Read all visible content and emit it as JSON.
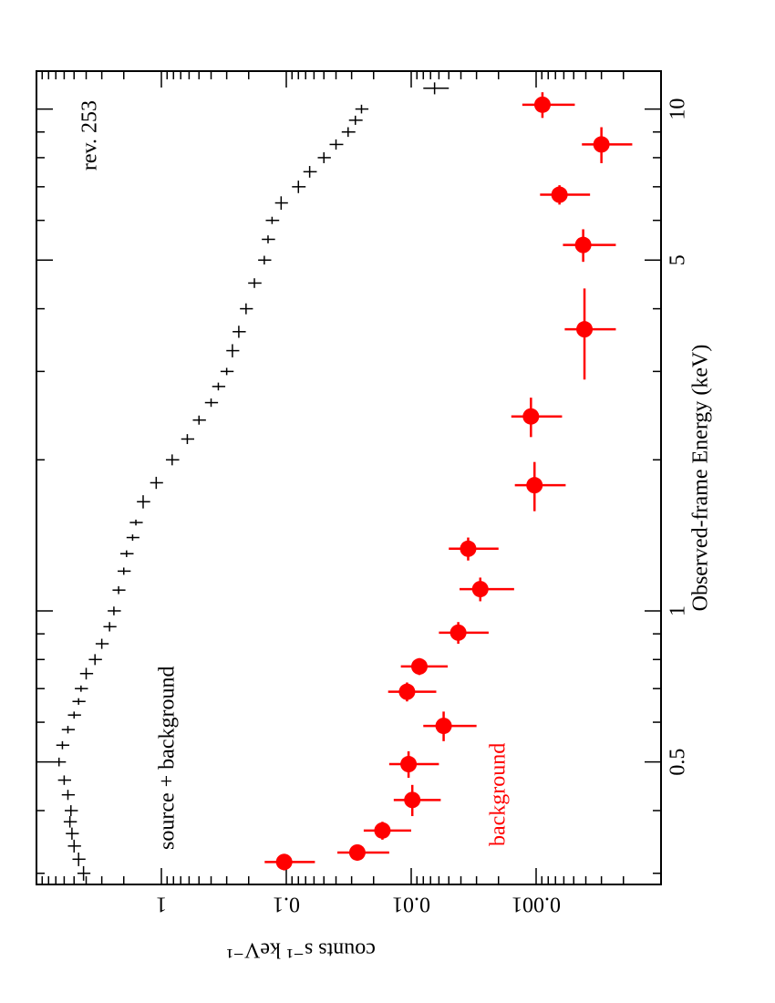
{
  "chart_data": {
    "type": "scatter",
    "xlabel": "Observed-frame  Energy  (keV)",
    "ylabel": "counts  s⁻¹  keV⁻¹",
    "annotations": [
      "rev. 253",
      "source + background",
      "background"
    ],
    "xscale": "log",
    "yscale": "log",
    "xlim": [
      0.285,
      11.9
    ],
    "ylim": [
      0.0001,
      10
    ],
    "xticks": [
      0.5,
      1,
      5,
      10
    ],
    "yticks": [
      0.001,
      0.01,
      0.1,
      1
    ],
    "xminorticks": [
      0.3,
      0.4,
      0.6,
      0.7,
      0.8,
      0.9,
      2,
      3,
      4,
      6,
      7,
      8,
      9
    ],
    "yminorticks": [
      0.0002,
      0.0003,
      0.0004,
      0.0005,
      0.0006,
      0.0007,
      0.0008,
      0.0009,
      0.002,
      0.003,
      0.004,
      0.005,
      0.006,
      0.007,
      0.008,
      0.009,
      0.02,
      0.03,
      0.04,
      0.05,
      0.06,
      0.07,
      0.08,
      0.09,
      0.2,
      0.3,
      0.4,
      0.5,
      0.6,
      0.7,
      0.8,
      0.9,
      2,
      3,
      4,
      5,
      6,
      7,
      8,
      9
    ],
    "series": [
      {
        "name": "source + background",
        "color": "#000000",
        "marker": "none",
        "x": [
          0.3,
          0.32,
          0.34,
          0.36,
          0.38,
          0.4,
          0.43,
          0.46,
          0.5,
          0.54,
          0.58,
          0.62,
          0.66,
          0.7,
          0.75,
          0.8,
          0.86,
          0.93,
          1.0,
          1.1,
          1.2,
          1.3,
          1.4,
          1.5,
          1.65,
          1.8,
          2.0,
          2.2,
          2.4,
          2.6,
          2.8,
          3.0,
          3.3,
          3.6,
          4.0,
          4.5,
          5.0,
          5.5,
          6.0,
          6.5,
          7.0,
          7.5,
          8.0,
          8.5,
          9.0,
          9.5,
          10.0,
          11.0
        ],
        "xerr": [
          0.01,
          0.01,
          0.01,
          0.01,
          0.01,
          0.01,
          0.01,
          0.01,
          0.01,
          0.01,
          0.01,
          0.01,
          0.01,
          0.01,
          0.02,
          0.02,
          0.02,
          0.02,
          0.02,
          0.02,
          0.02,
          0.02,
          0.02,
          0.02,
          0.05,
          0.05,
          0.05,
          0.05,
          0.05,
          0.05,
          0.05,
          0.05,
          0.1,
          0.1,
          0.1,
          0.1,
          0.1,
          0.1,
          0.1,
          0.2,
          0.2,
          0.2,
          0.2,
          0.2,
          0.2,
          0.2,
          0.2,
          0.3
        ],
        "values": [
          4.2,
          4.6,
          5.0,
          5.2,
          5.4,
          5.3,
          5.6,
          6.0,
          6.6,
          6.2,
          5.6,
          5.0,
          4.6,
          4.4,
          4.0,
          3.4,
          3.0,
          2.6,
          2.4,
          2.2,
          2.0,
          1.9,
          1.7,
          1.6,
          1.4,
          1.1,
          0.82,
          0.62,
          0.5,
          0.4,
          0.35,
          0.3,
          0.27,
          0.24,
          0.21,
          0.18,
          0.15,
          0.14,
          0.13,
          0.11,
          0.08,
          0.065,
          0.05,
          0.04,
          0.032,
          0.028,
          0.025,
          0.0065
        ],
        "yerr": [
          0.5,
          0.55,
          0.6,
          0.62,
          0.65,
          0.64,
          0.67,
          0.72,
          0.79,
          0.74,
          0.67,
          0.6,
          0.55,
          0.53,
          0.48,
          0.41,
          0.36,
          0.31,
          0.29,
          0.26,
          0.24,
          0.23,
          0.2,
          0.19,
          0.17,
          0.13,
          0.1,
          0.074,
          0.06,
          0.048,
          0.042,
          0.036,
          0.032,
          0.029,
          0.025,
          0.022,
          0.018,
          0.017,
          0.016,
          0.013,
          0.01,
          0.008,
          0.006,
          0.005,
          0.004,
          0.0035,
          0.003,
          0.0015
        ]
      },
      {
        "name": "background",
        "color": "#ff0000",
        "marker": "circle",
        "x": [
          0.316,
          0.33,
          0.365,
          0.42,
          0.495,
          0.59,
          0.69,
          0.775,
          0.905,
          1.105,
          1.33,
          1.78,
          2.44,
          3.64,
          5.36,
          6.75,
          8.5,
          10.2
        ],
        "xerr": [
          0.012,
          0.012,
          0.015,
          0.03,
          0.03,
          0.04,
          0.03,
          0.03,
          0.045,
          0.06,
          0.07,
          0.2,
          0.22,
          0.75,
          0.4,
          0.3,
          0.7,
          0.6
        ],
        "values": [
          0.104,
          0.027,
          0.017,
          0.0098,
          0.0105,
          0.0055,
          0.0108,
          0.0086,
          0.0042,
          0.0028,
          0.0035,
          0.00103,
          0.0011,
          0.00041,
          0.00042,
          0.00065,
          0.0003,
          0.00089
        ],
        "yerr": [
          0.045,
          0.012,
          0.007,
          0.004,
          0.0045,
          0.0025,
          0.0045,
          0.0035,
          0.0018,
          0.0013,
          0.0015,
          0.00045,
          0.00048,
          0.00018,
          0.00019,
          0.00028,
          0.00013,
          0.0004
        ]
      }
    ]
  }
}
